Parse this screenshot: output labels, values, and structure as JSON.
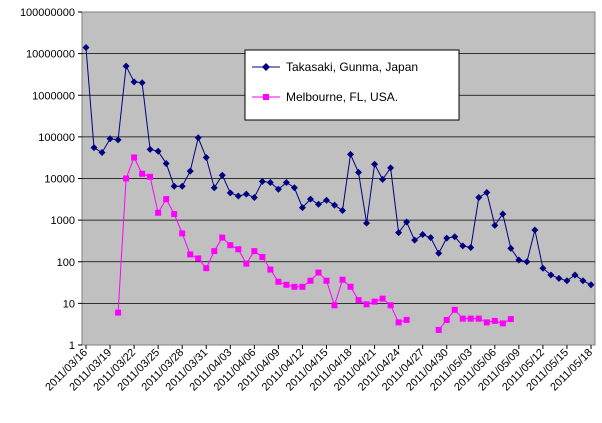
{
  "chart_data": {
    "type": "line",
    "title": "",
    "xlabel": "",
    "ylabel": "",
    "y_scale": "log",
    "ylim": [
      1,
      100000000
    ],
    "y_ticks": [
      "1",
      "10",
      "100",
      "1000",
      "10000",
      "100000",
      "1000000",
      "10000000",
      "100000000"
    ],
    "x_tick_labels": [
      "2011/03/16",
      "2011/03/19",
      "2011/03/22",
      "2011/03/25",
      "2011/03/28",
      "2011/03/31",
      "2011/04/03",
      "2011/04/06",
      "2011/04/09",
      "2011/04/12",
      "2011/04/15",
      "2011/04/18",
      "2011/04/21",
      "2011/04/24",
      "2011/04/27",
      "2011/04/30",
      "2011/05/03",
      "2011/05/06",
      "2011/05/09",
      "2011/05/12",
      "2011/05/15",
      "2011/05/18"
    ],
    "x_start": "2011/03/16",
    "x_end": "2011/05/20",
    "grid": "horizontal",
    "plot_background": "#c0c0c0",
    "legend_position": "top-right",
    "series": [
      {
        "name": "Takasaki, Gunma, Japan",
        "color": "#000080",
        "marker": "diamond",
        "values": [
          14000000,
          55000,
          42000,
          90000,
          85000,
          5000000,
          2100000,
          2000000,
          50000,
          45000,
          23000,
          6500,
          6500,
          15000,
          95000,
          32000,
          6000,
          12000,
          4500,
          3800,
          4200,
          3500,
          8500,
          8000,
          5500,
          8000,
          6000,
          2000,
          3200,
          2400,
          3000,
          2300,
          1700,
          38000,
          14000,
          850,
          22000,
          9500,
          18000,
          500,
          900,
          330,
          450,
          380,
          160,
          370,
          400,
          240,
          220,
          3500,
          4600,
          750,
          1400,
          210,
          110,
          100,
          580,
          70,
          48,
          40,
          35,
          48,
          35,
          28
        ]
      },
      {
        "name": "Melbourne, FL, USA.",
        "color": "#ff00ff",
        "marker": "square",
        "values": [
          null,
          null,
          null,
          null,
          6,
          10000,
          32000,
          13000,
          11000,
          1500,
          3200,
          1400,
          480,
          150,
          120,
          70,
          180,
          380,
          250,
          200,
          90,
          180,
          130,
          65,
          33,
          28,
          25,
          25,
          35,
          55,
          35,
          9,
          37,
          25,
          12,
          9.5,
          11,
          13,
          9,
          3.5,
          4,
          null,
          null,
          null,
          2.3,
          4,
          7,
          4.3,
          4.3,
          4.3,
          3.5,
          3.8,
          3.3,
          4.2,
          null,
          null,
          null,
          null,
          null,
          null,
          null,
          null,
          null,
          null
        ]
      }
    ]
  }
}
